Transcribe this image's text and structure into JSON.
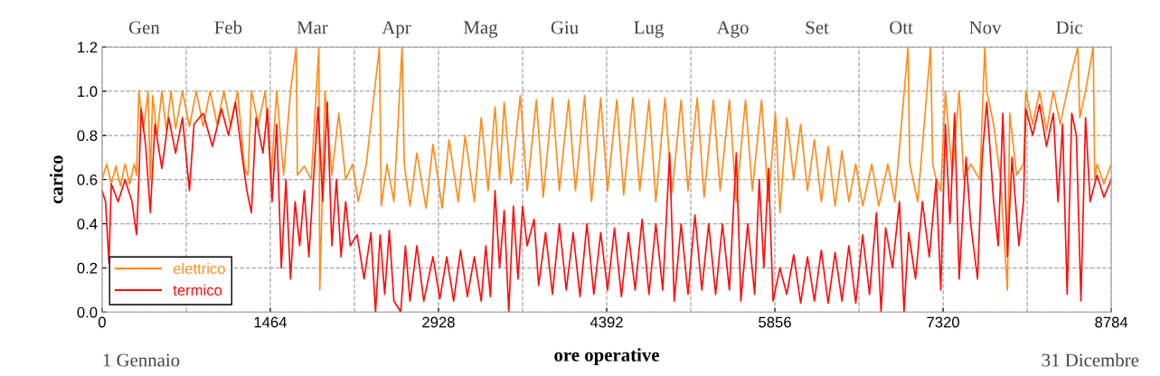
{
  "chart_data": {
    "type": "line",
    "xlabel": "ore operative",
    "ylabel": "carico",
    "xlim": [
      0,
      8784
    ],
    "xticks": [
      0,
      1464,
      2928,
      4392,
      5856,
      7320,
      8784
    ],
    "ylim": [
      0,
      1.2
    ],
    "yticks": [
      {
        "value": 0,
        "label": "0.0"
      },
      0.2,
      0.4,
      0.6,
      0.8,
      {
        "value": 1,
        "label": "1.0"
      },
      1.2
    ],
    "ref_lines": [
      {
        "axis": "x",
        "value": 732,
        "line_style": "dashed",
        "color": "#a6a6a6"
      },
      {
        "axis": "x",
        "value": 2196,
        "line_style": "dashed",
        "color": "#a6a6a6"
      },
      {
        "axis": "x",
        "value": 3660,
        "line_style": "dashed",
        "color": "#a6a6a6"
      },
      {
        "axis": "x",
        "value": 5124,
        "line_style": "dashed",
        "color": "#a6a6a6"
      },
      {
        "axis": "x",
        "value": 6588,
        "line_style": "dashed",
        "color": "#a6a6a6"
      },
      {
        "axis": "x",
        "value": 8052,
        "line_style": "dashed",
        "color": "#a6a6a6"
      }
    ],
    "grid": true,
    "legend": "bottom left",
    "marker": "none",
    "line_style": "solid",
    "annotations": [
      "Gen",
      "Feb",
      "Mar",
      "Apr",
      "Mag",
      "Giu",
      "Lug",
      "Ago",
      "Set",
      "Ott",
      "Nov",
      "Dic",
      "1 Gennaio",
      "31 Dicembre"
    ],
    "series": [
      {
        "name": "elettrico",
        "color": "#ff8c1a",
        "x": [
          0,
          40,
          80,
          120,
          160,
          200,
          240,
          280,
          300,
          320,
          360,
          400,
          420,
          440,
          480,
          520,
          560,
          600,
          640,
          700,
          760,
          820,
          880,
          940,
          1000,
          1060,
          1120,
          1180,
          1240,
          1270,
          1300,
          1360,
          1420,
          1470,
          1520,
          1580,
          1640,
          1690,
          1700,
          1760,
          1820,
          1887,
          1895,
          1940,
          2000,
          2060,
          2120,
          2180,
          2230,
          2300,
          2414,
          2430,
          2480,
          2540,
          2611,
          2630,
          2680,
          2740,
          2820,
          2880,
          2960,
          3020,
          3100,
          3160,
          3240,
          3300,
          3360,
          3420,
          3460,
          3500,
          3560,
          3640,
          3700,
          3780,
          3840,
          3920,
          3980,
          4060,
          4120,
          4200,
          4260,
          4340,
          4400,
          4480,
          4540,
          4620,
          4680,
          4760,
          4820,
          4900,
          4960,
          5040,
          5100,
          5180,
          5240,
          5320,
          5380,
          5460,
          5520,
          5600,
          5660,
          5740,
          5800,
          5860,
          5900,
          5960,
          6020,
          6080,
          6140,
          6200,
          6260,
          6320,
          6380,
          6440,
          6500,
          6560,
          6620,
          6700,
          6760,
          6840,
          6900,
          7015,
          7030,
          7100,
          7211,
          7230,
          7260,
          7300,
          7340,
          7400,
          7460,
          7500,
          7560,
          7640,
          7683,
          7700,
          7760,
          7820,
          7880,
          7900,
          7960,
          8020,
          8040,
          8100,
          8160,
          8220,
          8280,
          8340,
          8400,
          8493,
          8510,
          8560,
          8627,
          8640,
          8660,
          8720,
          8784
        ],
        "values": [
          0.6,
          0.67,
          0.58,
          0.66,
          0.57,
          0.67,
          0.58,
          0.67,
          0.62,
          1.0,
          0.82,
          1.0,
          0.6,
          0.98,
          0.8,
          1.0,
          0.82,
          1.0,
          0.83,
          1.0,
          0.84,
          1.0,
          0.84,
          1.0,
          0.85,
          1.0,
          0.84,
          1.0,
          0.65,
          0.62,
          1.0,
          0.85,
          1.0,
          0.6,
          1.0,
          0.62,
          1.0,
          1.2,
          0.62,
          0.66,
          0.6,
          1.2,
          0.1,
          1.0,
          0.62,
          0.9,
          0.6,
          0.67,
          0.5,
          0.67,
          1.2,
          0.48,
          0.67,
          0.5,
          1.2,
          0.67,
          0.48,
          0.72,
          0.47,
          0.76,
          0.47,
          0.78,
          0.5,
          0.8,
          0.5,
          0.88,
          0.55,
          0.93,
          0.6,
          0.95,
          0.58,
          0.98,
          0.55,
          0.96,
          0.52,
          0.97,
          0.55,
          0.96,
          0.55,
          0.98,
          0.5,
          0.97,
          0.55,
          0.96,
          0.53,
          0.97,
          0.55,
          0.96,
          0.5,
          0.97,
          0.54,
          0.96,
          0.55,
          0.97,
          0.52,
          0.96,
          0.55,
          0.96,
          0.5,
          0.96,
          0.55,
          0.96,
          0.5,
          0.9,
          0.45,
          0.88,
          0.6,
          0.85,
          0.55,
          0.78,
          0.5,
          0.75,
          0.48,
          0.73,
          0.5,
          0.67,
          0.48,
          0.67,
          0.48,
          0.67,
          0.5,
          1.2,
          0.67,
          0.5,
          1.2,
          0.67,
          0.6,
          0.55,
          1.0,
          0.62,
          1.0,
          0.6,
          0.67,
          0.6,
          1.2,
          1.0,
          0.85,
          0.6,
          0.1,
          0.9,
          0.62,
          0.67,
          1.0,
          0.85,
          1.0,
          0.82,
          1.0,
          0.85,
          1.0,
          1.2,
          0.88,
          1.0,
          1.2,
          0.6,
          0.67,
          0.58,
          0.67
        ]
      },
      {
        "name": "termico",
        "color": "#ff0d0d",
        "x": [
          0,
          30,
          60,
          80,
          140,
          200,
          260,
          300,
          320,
          340,
          380,
          420,
          460,
          520,
          580,
          640,
          700,
          760,
          800,
          880,
          960,
          1040,
          1100,
          1160,
          1220,
          1260,
          1300,
          1340,
          1400,
          1440,
          1480,
          1520,
          1560,
          1600,
          1640,
          1680,
          1720,
          1760,
          1800,
          1840,
          1880,
          1920,
          1960,
          2000,
          2040,
          2080,
          2120,
          2160,
          2220,
          2280,
          2340,
          2380,
          2420,
          2460,
          2500,
          2540,
          2600,
          2640,
          2680,
          2740,
          2800,
          2880,
          2940,
          3000,
          3060,
          3120,
          3180,
          3240,
          3300,
          3340,
          3380,
          3420,
          3460,
          3500,
          3540,
          3580,
          3620,
          3660,
          3700,
          3760,
          3800,
          3860,
          3920,
          3980,
          4040,
          4100,
          4160,
          4220,
          4280,
          4340,
          4400,
          4460,
          4520,
          4580,
          4640,
          4700,
          4760,
          4820,
          4880,
          4940,
          4980,
          5040,
          5100,
          5160,
          5220,
          5280,
          5340,
          5400,
          5460,
          5520,
          5560,
          5620,
          5680,
          5720,
          5760,
          5800,
          5840,
          5900,
          5960,
          6020,
          6080,
          6140,
          6200,
          6260,
          6320,
          6380,
          6440,
          6500,
          6560,
          6620,
          6680,
          6740,
          6780,
          6820,
          6880,
          6940,
          6980,
          7020,
          7080,
          7140,
          7200,
          7260,
          7300,
          7340,
          7380,
          7420,
          7460,
          7520,
          7560,
          7620,
          7660,
          7700,
          7760,
          7800,
          7840,
          7880,
          7920,
          7980,
          8020,
          8040,
          8100,
          8160,
          8220,
          8280,
          8320,
          8360,
          8400,
          8440,
          8480,
          8520,
          8560,
          8600,
          8660,
          8720,
          8784
        ],
        "values": [
          0.55,
          0.5,
          0.22,
          0.58,
          0.5,
          0.6,
          0.5,
          0.35,
          0.6,
          0.92,
          0.75,
          0.45,
          0.85,
          0.65,
          0.88,
          0.72,
          0.88,
          0.55,
          0.85,
          0.9,
          0.75,
          0.92,
          0.8,
          0.95,
          0.7,
          0.55,
          0.45,
          0.88,
          0.72,
          0.92,
          0.5,
          0.85,
          0.2,
          0.6,
          0.15,
          0.5,
          0.3,
          0.55,
          0.25,
          0.6,
          0.93,
          0.5,
          0.95,
          0.3,
          0.6,
          0.25,
          0.5,
          0.3,
          0.35,
          0.15,
          0.36,
          0.0,
          0.35,
          0.08,
          0.37,
          0.05,
          0.0,
          0.3,
          0.05,
          0.3,
          0.05,
          0.25,
          0.06,
          0.25,
          0.05,
          0.28,
          0.07,
          0.25,
          0.05,
          0.3,
          0.07,
          0.55,
          0.2,
          0.46,
          0.0,
          0.48,
          0.15,
          0.48,
          0.3,
          0.42,
          0.12,
          0.36,
          0.08,
          0.4,
          0.1,
          0.36,
          0.07,
          0.4,
          0.08,
          0.36,
          0.1,
          0.38,
          0.07,
          0.36,
          0.1,
          0.42,
          0.08,
          0.4,
          0.1,
          0.72,
          0.05,
          0.4,
          0.08,
          0.44,
          0.1,
          0.4,
          0.08,
          0.4,
          0.1,
          0.72,
          0.05,
          0.4,
          0.08,
          0.6,
          0.2,
          0.65,
          0.05,
          0.2,
          0.08,
          0.26,
          0.04,
          0.25,
          0.05,
          0.28,
          0.04,
          0.27,
          0.05,
          0.3,
          0.04,
          0.35,
          0.08,
          0.45,
          0.0,
          0.38,
          0.2,
          0.5,
          0.0,
          0.36,
          0.15,
          0.5,
          0.25,
          0.6,
          0.1,
          0.85,
          0.4,
          0.9,
          0.15,
          0.7,
          0.4,
          0.15,
          0.7,
          0.95,
          0.5,
          0.3,
          0.9,
          0.25,
          0.7,
          0.3,
          0.5,
          0.92,
          0.8,
          0.94,
          0.75,
          0.9,
          0.5,
          0.85,
          0.08,
          0.9,
          0.8,
          0.05,
          0.88,
          0.5,
          0.62,
          0.52,
          0.6
        ]
      }
    ]
  }
}
